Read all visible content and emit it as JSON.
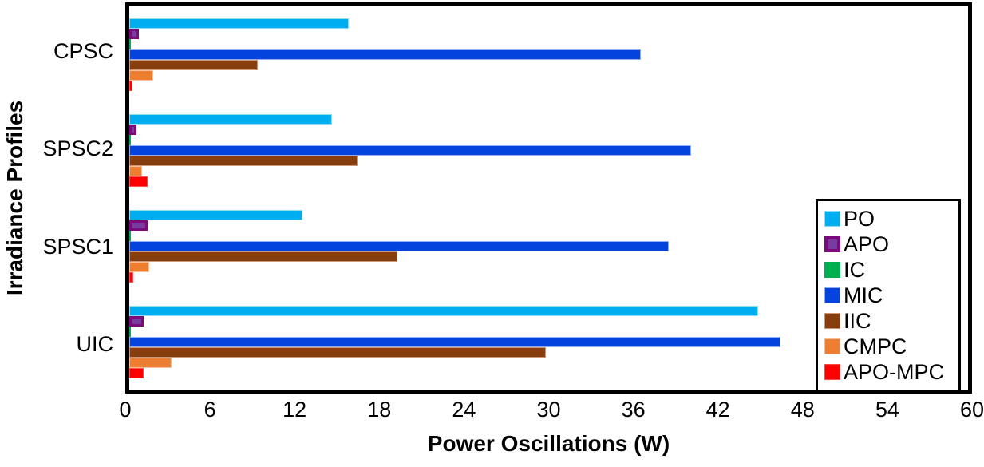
{
  "chart_data": {
    "type": "bar",
    "orientation": "horizontal",
    "xlabel": "Power Oscillations (W)",
    "ylabel": "Irradiance Profiles",
    "xlim": [
      0,
      60
    ],
    "xticks": [
      0,
      6,
      12,
      18,
      24,
      30,
      36,
      42,
      48,
      54,
      60
    ],
    "grid": false,
    "legend_position": "right-inside",
    "categories": [
      "CPSC",
      "SPSC2",
      "SPSC1",
      "UIC"
    ],
    "series": [
      {
        "name": "PO",
        "color": "#00AEEF",
        "border_color": "#8FDCF6",
        "border_width": 1,
        "values": [
          15.7,
          14.5,
          12.4,
          45.0
        ]
      },
      {
        "name": "APO",
        "color": "#7A3BA0",
        "border_color": "#7D0A7D",
        "border_width": 3,
        "values": [
          0.7,
          0.5,
          1.3,
          1.0
        ]
      },
      {
        "name": "IC",
        "color": "#00B050",
        "border_color": "#00B050",
        "border_width": 1,
        "values": [
          0.1,
          0.1,
          0.1,
          0.1
        ]
      },
      {
        "name": "MIC",
        "color": "#0443DC",
        "border_color": "#93A9F1",
        "border_width": 1,
        "values": [
          36.6,
          40.2,
          38.6,
          46.6
        ]
      },
      {
        "name": "IIC",
        "color": "#873E0C",
        "border_color": "#C9977A",
        "border_width": 1,
        "values": [
          9.2,
          16.3,
          19.2,
          29.8
        ]
      },
      {
        "name": "CMPC",
        "color": "#ED7D31",
        "border_color": "#F5C09A",
        "border_width": 1,
        "values": [
          1.7,
          0.9,
          1.4,
          3.0
        ]
      },
      {
        "name": "APO-MPC",
        "color": "#FF0000",
        "border_color": "#FF4D4D",
        "border_width": 1,
        "values": [
          0.2,
          1.3,
          0.3,
          1.0
        ]
      }
    ],
    "frame_color": "#000000",
    "background_color": "#FFFFFF"
  }
}
